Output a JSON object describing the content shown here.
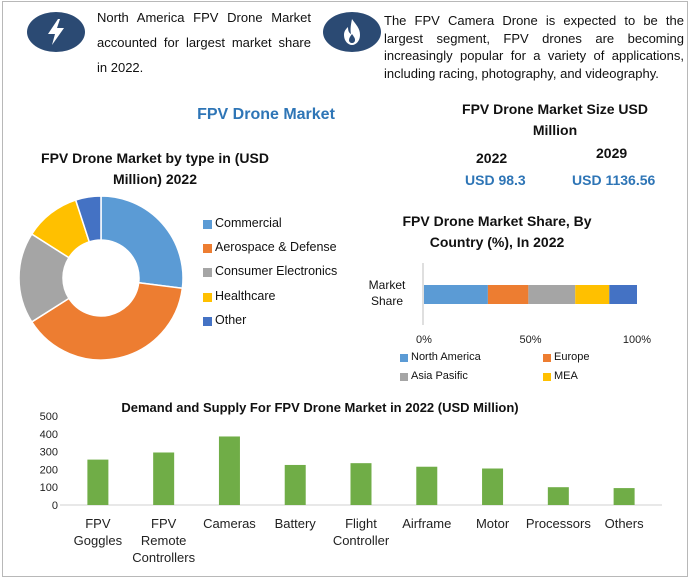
{
  "top_left_text": "North America FPV Drone Market accounted for largest market share in 2022.",
  "top_right_text": "The FPV Camera Drone is expected to be the largest segment, FPV drones are becoming increasingly popular for a variety of applications, including racing, photography, and videography.",
  "icons": {
    "left": "lightning-icon",
    "right": "flame-icon"
  },
  "colors": {
    "accent": "#2e75b6",
    "icon_bg": "#2b4a73",
    "bar_green": "#70ad47"
  },
  "main_title": "FPV Drone Market",
  "market_size": {
    "title": "FPV Drone Market Size USD Million",
    "year1": "2022",
    "value1": "USD 98.3",
    "year2": "2029",
    "value2": "USD 1136.56"
  },
  "chart_data": [
    {
      "type": "pie",
      "title": "FPV Drone Market by type in (USD Million) 2022",
      "categories": [
        "Commercial",
        "Aerospace & Defense",
        "Consumer Electronics",
        "Healthcare",
        "Other"
      ],
      "values": [
        27,
        39,
        18,
        11,
        5
      ],
      "colors": [
        "#5b9bd5",
        "#ed7d31",
        "#a5a5a5",
        "#ffc000",
        "#4472c4"
      ],
      "donut": true,
      "legend": "right"
    },
    {
      "type": "bar",
      "orientation": "horizontal",
      "stacked": true,
      "title": "FPV Drone Market Share, By Country (%), In 2022",
      "categories": [
        "Market Share"
      ],
      "series": [
        {
          "name": "North America",
          "values": [
            30
          ]
        },
        {
          "name": "Europe",
          "values": [
            19
          ]
        },
        {
          "name": "Asia Pasific",
          "values": [
            22
          ]
        },
        {
          "name": "MEA",
          "values": [
            16
          ]
        },
        {
          "name": "",
          "values": [
            13
          ]
        }
      ],
      "colors": [
        "#5b9bd5",
        "#ed7d31",
        "#a5a5a5",
        "#ffc000",
        "#4472c4"
      ],
      "xticks": [
        "0%",
        "50%",
        "100%"
      ],
      "xlim": [
        0,
        100
      ],
      "legend": "bottom"
    },
    {
      "type": "bar",
      "title": "Demand and Supply For FPV Drone Market in 2022 (USD Million)",
      "categories": [
        "FPV Goggles",
        "FPV Remote Controllers",
        "Cameras",
        "Battery",
        "Flight Controller",
        "Airframe",
        "Motor",
        "Processors",
        "Others"
      ],
      "values": [
        255,
        295,
        385,
        225,
        235,
        215,
        205,
        100,
        95
      ],
      "ylim": [
        0,
        500
      ],
      "yticks": [
        "0",
        "100",
        "200",
        "300",
        "400",
        "500"
      ],
      "grid": false
    }
  ]
}
